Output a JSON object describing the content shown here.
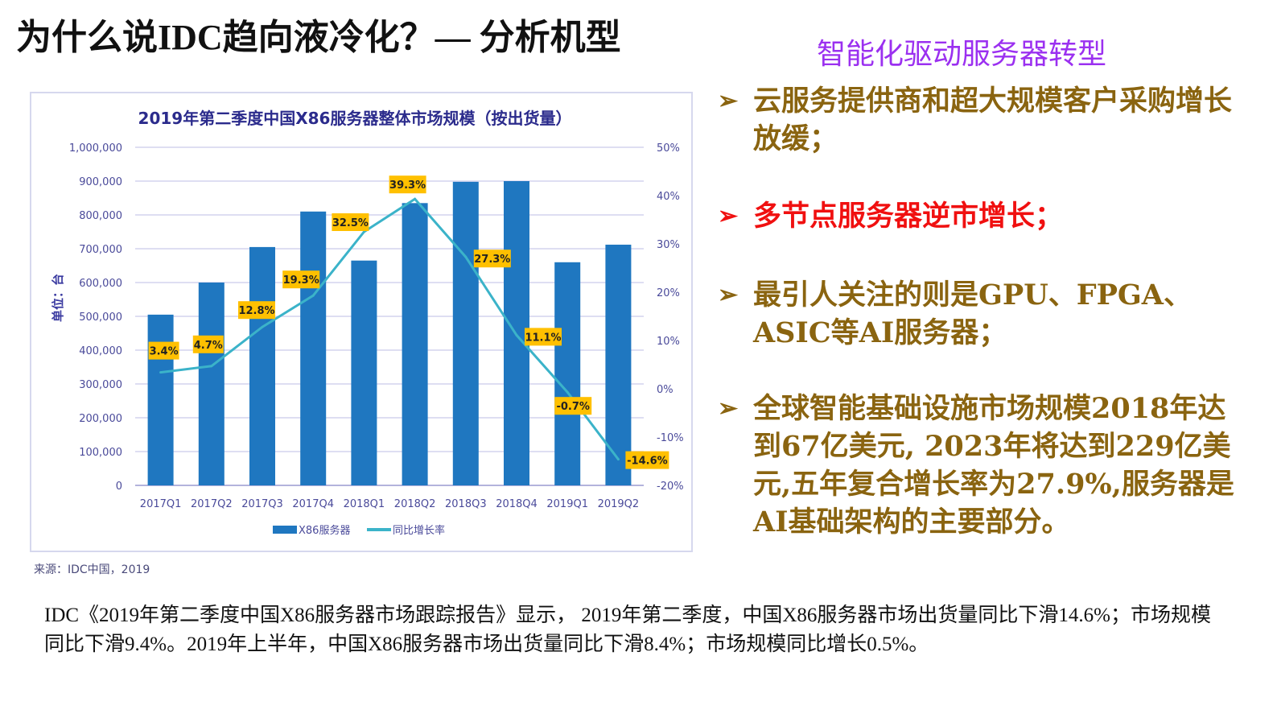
{
  "slide": {
    "title": "为什么说IDC趋向液冷化？— 分析机型",
    "source": "来源：IDC中国，2019",
    "panel_title": "智能化驱动服务器转型",
    "bullets": [
      {
        "text": "云服务提供商和超大规模客户采购增长放缓；",
        "highlight": false
      },
      {
        "text": "多节点服务器逆市增长；",
        "highlight": true
      },
      {
        "text": "最引人关注的则是GPU、FPGA、ASIC等AI服务器；",
        "highlight": false
      },
      {
        "text": "全球智能基础设施市场规模2018年达到67亿美元, 2023年将达到229亿美元,五年复合增长率为27.9%,服务器是AI基础架构的主要部分。",
        "highlight": false
      }
    ],
    "bullet_marker": "➢",
    "bottom_text": "IDC《2019年第二季度中国X86服务器市场跟踪报告》显示， 2019年第二季度，中国X86服务器市场出货量同比下滑14.6%；市场规模同比下滑9.4%。2019年上半年，中国X86服务器市场出货量同比下滑8.4%；市场规模同比增长0.5%。",
    "colors": {
      "panel_title": "#9b30f0",
      "bullet": "#8a6410",
      "highlight": "#f01010"
    }
  },
  "chart_data": {
    "type": "bar",
    "title": "2019年第二季度中国X86服务器整体市场规模（按出货量）",
    "ylabel": "单位：台",
    "categories": [
      "2017Q1",
      "2017Q2",
      "2017Q3",
      "2017Q4",
      "2018Q1",
      "2018Q2",
      "2018Q3",
      "2018Q4",
      "2019Q1",
      "2019Q2"
    ],
    "series": [
      {
        "name": "X86服务器",
        "type": "bar",
        "axis": "left",
        "color": "#1f77c0",
        "values": [
          505000,
          600000,
          705000,
          810000,
          665000,
          835000,
          898000,
          900000,
          660000,
          712000
        ]
      },
      {
        "name": "同比增长率",
        "type": "line",
        "axis": "right",
        "color": "#3bb3c9",
        "values": [
          3.4,
          4.7,
          12.8,
          19.3,
          32.5,
          39.3,
          27.3,
          11.1,
          -0.7,
          -14.6
        ],
        "labels": [
          "3.4%",
          "4.7%",
          "12.8%",
          "19.3%",
          "32.5%",
          "39.3%",
          "27.3%",
          "11.1%",
          "-0.7%",
          "-14.6%"
        ]
      }
    ],
    "ylim": [
      0,
      1000000
    ],
    "y_ticks": [
      "0",
      "100,000",
      "200,000",
      "300,000",
      "400,000",
      "500,000",
      "600,000",
      "700,000",
      "800,000",
      "900,000",
      "1,000,000"
    ],
    "y2lim": [
      -20,
      50
    ],
    "y2_ticks": [
      "-20%",
      "-10%",
      "0%",
      "10%",
      "20%",
      "30%",
      "40%",
      "50%"
    ],
    "grid": true,
    "legend": "bottom",
    "label_color": "#ffc000"
  }
}
